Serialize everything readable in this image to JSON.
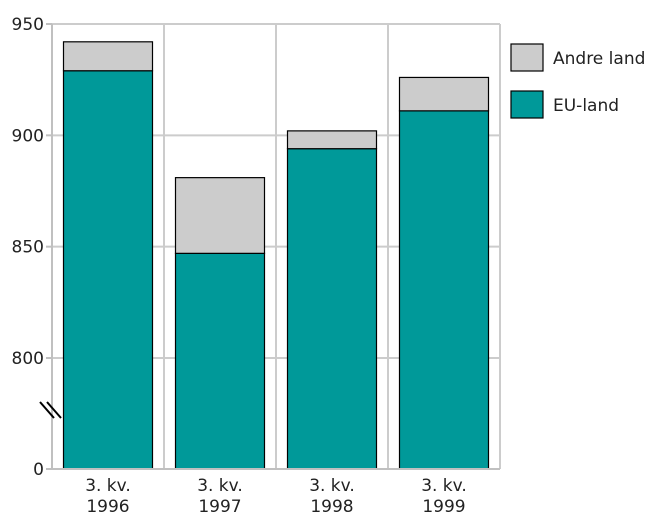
{
  "chart_data": {
    "type": "bar",
    "stacked": true,
    "categories": [
      "3. kv.\n1996",
      "3. kv.\n1997",
      "3. kv.\n1998",
      "3. kv.\n1999"
    ],
    "series": [
      {
        "name": "EU-land",
        "values": [
          929,
          847,
          894,
          911
        ],
        "color": "#009999"
      },
      {
        "name": "Andre land",
        "values": [
          13,
          34,
          8,
          15
        ],
        "color": "#cccccc"
      }
    ],
    "yticks": [
      {
        "value": 0,
        "label": "0"
      },
      {
        "value": 800,
        "label": "800"
      },
      {
        "value": 850,
        "label": "850"
      },
      {
        "value": 900,
        "label": "900"
      },
      {
        "value": 950,
        "label": "950"
      }
    ],
    "ylim": [
      0,
      950
    ],
    "axis_break": {
      "between": [
        0,
        800
      ]
    },
    "grid": true,
    "legend_position": "top-right",
    "title": "",
    "xlabel": "",
    "ylabel": "",
    "colors": {
      "grid": "#cccccc",
      "axis": "#c0c0c0",
      "bar_stroke": "#000000"
    }
  }
}
